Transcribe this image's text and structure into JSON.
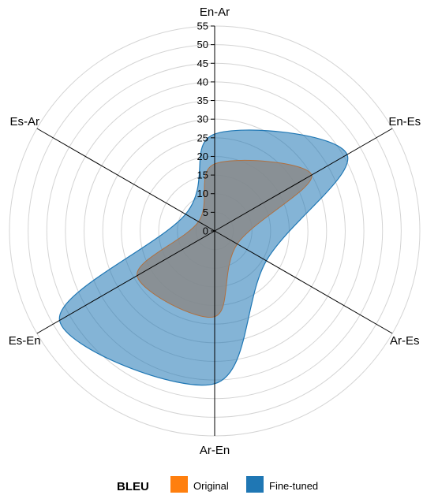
{
  "chart_data": {
    "type": "radar",
    "axes": [
      "En-Ar",
      "En-Es",
      "Ar-Es",
      "Ar-En",
      "Es-En",
      "Es-Ar"
    ],
    "radial_ticks": [
      0,
      5,
      10,
      15,
      20,
      25,
      30,
      35,
      40,
      45,
      50,
      55
    ],
    "rmax": 55,
    "grid": true,
    "legend_title": "BLEU",
    "legend_position": "bottom",
    "series": [
      {
        "name": "Fine-tuned",
        "color": "#1f77b4",
        "values": [
          26,
          41,
          16,
          41,
          48,
          9
        ]
      },
      {
        "name": "Original",
        "color": "#ff7f0e",
        "values": [
          18,
          30,
          7,
          23,
          24,
          5
        ]
      }
    ]
  }
}
